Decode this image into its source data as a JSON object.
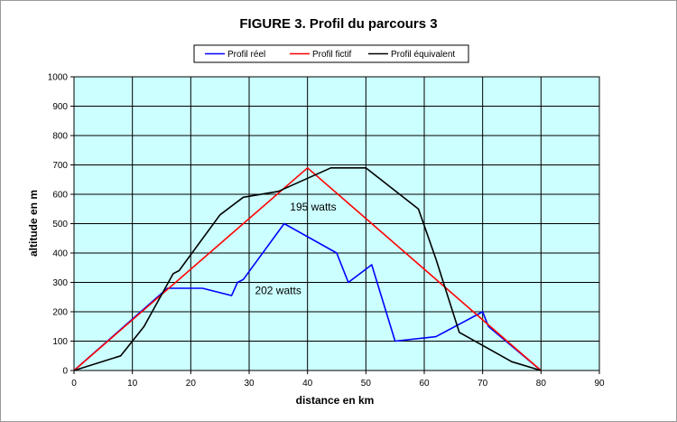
{
  "chart_data": {
    "type": "line",
    "title": "FIGURE 3. Profil du parcours 3",
    "xlabel": "distance en km",
    "ylabel": "altitude en m",
    "xlim": [
      0,
      90
    ],
    "ylim": [
      0,
      1000
    ],
    "x_ticks": [
      0,
      10,
      20,
      30,
      40,
      50,
      60,
      70,
      80,
      90
    ],
    "y_ticks": [
      0,
      100,
      200,
      300,
      400,
      500,
      600,
      700,
      800,
      900,
      1000
    ],
    "grid": true,
    "legend_position": "top",
    "plot_background": "#ccffff",
    "series": [
      {
        "name": "Profil réel",
        "color": "#0000ff",
        "points": [
          [
            0,
            0
          ],
          [
            16,
            280
          ],
          [
            22,
            280
          ],
          [
            27,
            255
          ],
          [
            28,
            300
          ],
          [
            29,
            310
          ],
          [
            36,
            500
          ],
          [
            45,
            400
          ],
          [
            47,
            300
          ],
          [
            51,
            360
          ],
          [
            55,
            100
          ],
          [
            62,
            115
          ],
          [
            70,
            200
          ],
          [
            71,
            150
          ],
          [
            80,
            0
          ]
        ]
      },
      {
        "name": "Profil fictif",
        "color": "#ff0000",
        "points": [
          [
            0,
            0
          ],
          [
            40,
            690
          ],
          [
            80,
            0
          ]
        ]
      },
      {
        "name": "Profil équivalent",
        "color": "#000000",
        "points": [
          [
            0,
            0
          ],
          [
            8,
            50
          ],
          [
            12,
            150
          ],
          [
            17,
            330
          ],
          [
            18,
            340
          ],
          [
            25,
            530
          ],
          [
            29,
            590
          ],
          [
            35,
            610
          ],
          [
            44,
            690
          ],
          [
            50,
            690
          ],
          [
            59,
            550
          ],
          [
            62,
            380
          ],
          [
            66,
            130
          ],
          [
            75,
            30
          ],
          [
            80,
            0
          ]
        ]
      }
    ],
    "annotations": [
      {
        "text": "195 watts",
        "x": 37,
        "y": 545
      },
      {
        "text": "202 watts",
        "x": 31,
        "y": 260
      }
    ]
  }
}
